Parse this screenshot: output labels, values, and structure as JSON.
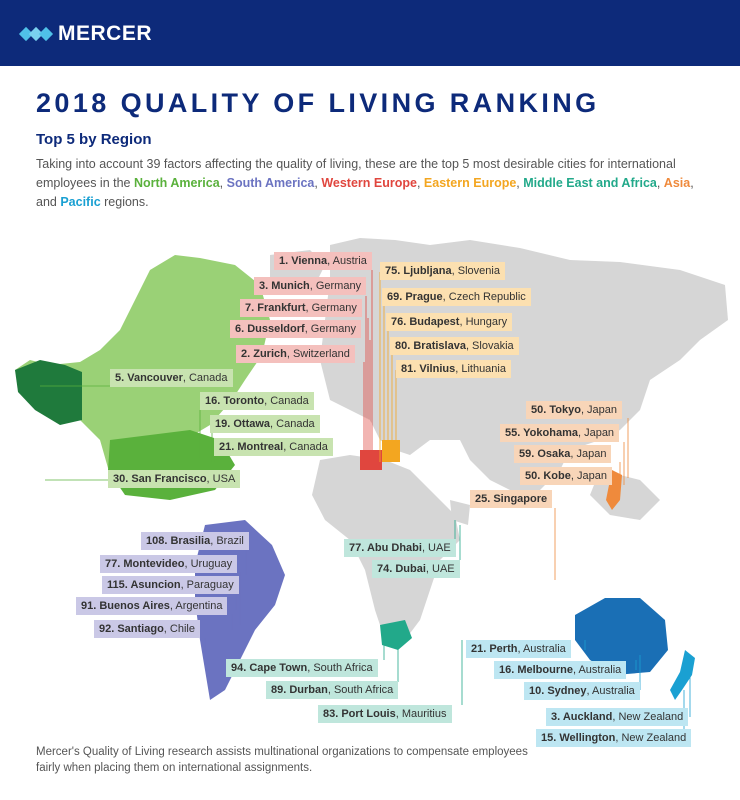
{
  "brand": {
    "name": "MERCER"
  },
  "title": "2018 QUALITY OF LIVING RANKING",
  "subtitle": "Top 5 by Region",
  "intro": {
    "p1": "Taking into account 39 factors affecting the quality of living, these are the top 5 most desirable cities for international employees in the ",
    "r1": "North America",
    "s1": ", ",
    "r2": "South America",
    "s2": ", ",
    "r3": "Western Europe",
    "s3": ", ",
    "r4": "Eastern Europe",
    "s4": ", ",
    "r5": "Middle East and Africa",
    "s5": ", ",
    "r6": "Asia",
    "s6": ", and ",
    "r7": "Pacific",
    "s7": " regions."
  },
  "colors": {
    "north_america": "#5ab13c",
    "south_america": "#6b73c1",
    "western_europe": "#e0463e",
    "eastern_europe": "#f3a620",
    "middle_east_africa": "#22a98a",
    "asia": "#ef8a3c",
    "pacific": "#1aa0d2",
    "header": "#0d2a7a"
  },
  "labels": {
    "western_europe": [
      {
        "rank": "1. Vienna",
        "country": ", Austria"
      },
      {
        "rank": "3. Munich",
        "country": ", Germany"
      },
      {
        "rank": "7. Frankfurt",
        "country": ", Germany"
      },
      {
        "rank": "6. Dusseldorf",
        "country": ", Germany"
      },
      {
        "rank": "2. Zurich",
        "country": ", Switzerland"
      }
    ],
    "eastern_europe": [
      {
        "rank": "75. Ljubljana",
        "country": ", Slovenia"
      },
      {
        "rank": "69. Prague",
        "country": ", Czech Republic"
      },
      {
        "rank": "76. Budapest",
        "country": ", Hungary"
      },
      {
        "rank": "80. Bratislava",
        "country": ", Slovakia"
      },
      {
        "rank": "81. Vilnius",
        "country": ", Lithuania"
      }
    ],
    "north_america": [
      {
        "rank": "5. Vancouver",
        "country": ", Canada"
      },
      {
        "rank": "16. Toronto",
        "country": ", Canada"
      },
      {
        "rank": "19. Ottawa",
        "country": ", Canada"
      },
      {
        "rank": "21. Montreal",
        "country": ", Canada"
      },
      {
        "rank": "30. San Francisco",
        "country": ", USA"
      }
    ],
    "asia": [
      {
        "rank": "50. Tokyo",
        "country": ", Japan"
      },
      {
        "rank": "55. Yokohama",
        "country": ", Japan"
      },
      {
        "rank": "59. Osaka",
        "country": ", Japan"
      },
      {
        "rank": "50. Kobe",
        "country": ", Japan"
      },
      {
        "rank": "25. Singapore",
        "country": ""
      }
    ],
    "south_america": [
      {
        "rank": "108. Brasilia",
        "country": ", Brazil"
      },
      {
        "rank": "77. Montevideo",
        "country": ", Uruguay"
      },
      {
        "rank": "115. Asuncion",
        "country": ", Paraguay"
      },
      {
        "rank": "91. Buenos Aires",
        "country": ", Argentina"
      },
      {
        "rank": "92. Santiago",
        "country": ", Chile"
      }
    ],
    "middle_east_africa": [
      {
        "rank": "77. Abu Dhabi",
        "country": ", UAE"
      },
      {
        "rank": "74. Dubai",
        "country": ", UAE"
      },
      {
        "rank": "94. Cape Town",
        "country": ", South Africa"
      },
      {
        "rank": "89. Durban",
        "country": ", South Africa"
      },
      {
        "rank": "83. Port Louis",
        "country": ", Mauritius"
      }
    ],
    "pacific": [
      {
        "rank": "21. Perth",
        "country": ", Australia"
      },
      {
        "rank": "16. Melbourne",
        "country": ", Australia"
      },
      {
        "rank": "10. Sydney",
        "country": ", Australia"
      },
      {
        "rank": "3. Auckland",
        "country": ", New Zealand"
      },
      {
        "rank": "15. Wellington",
        "country": ", New Zealand"
      }
    ]
  },
  "footer": "Mercer's Quality of Living research assists multinational organizations to compensate employees fairly when placing them on international assignments."
}
